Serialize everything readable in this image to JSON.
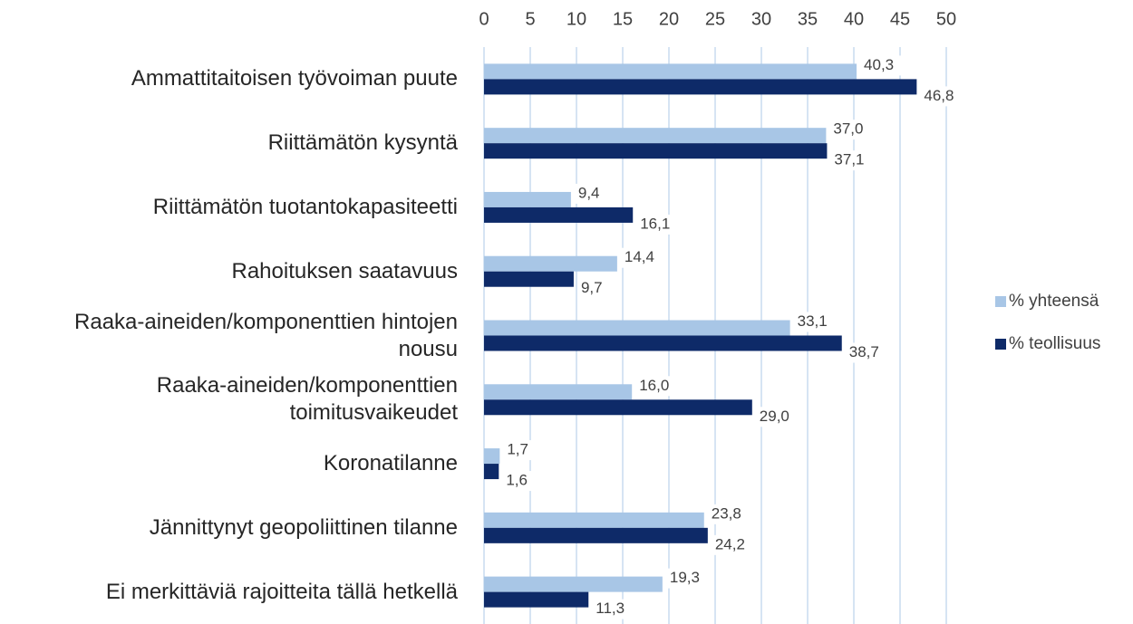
{
  "chart_data": {
    "type": "bar",
    "orientation": "horizontal",
    "categories": [
      "Ammattitaitoisen työvoiman puute",
      "Riittämätön kysyntä",
      "Riittämätön tuotantokapasiteetti",
      "Rahoituksen saatavuus",
      "Raaka-aineiden/komponenttien hintojen nousu",
      "Raaka-aineiden/komponenttien toimitusvaikeudet",
      "Koronatilanne",
      "Jännittynyt geopoliittinen tilanne",
      "Ei merkittäviä rajoitteita tällä hetkellä"
    ],
    "series": [
      {
        "name": "% yhteensä",
        "color": "#a8c6e6",
        "values": [
          40.3,
          37.0,
          9.4,
          14.4,
          33.1,
          16.0,
          1.7,
          23.8,
          19.3
        ],
        "value_labels": [
          "40,3",
          "37,0",
          "9,4",
          "14,4",
          "33,1",
          "16,0",
          "1,7",
          "23,8",
          "19,3"
        ]
      },
      {
        "name": "% teollisuus",
        "color": "#0e2a68",
        "values": [
          46.8,
          37.1,
          16.1,
          9.7,
          38.7,
          29.0,
          1.6,
          24.2,
          11.3
        ],
        "value_labels": [
          "46,8",
          "37,1",
          "16,1",
          "9,7",
          "38,7",
          "29,0",
          "1,6",
          "24,2",
          "11,3"
        ]
      }
    ],
    "xlim": [
      0,
      50
    ],
    "xticks": [
      0,
      5,
      10,
      15,
      20,
      25,
      30,
      35,
      40,
      45,
      50
    ],
    "grid": true,
    "legend": "right"
  }
}
